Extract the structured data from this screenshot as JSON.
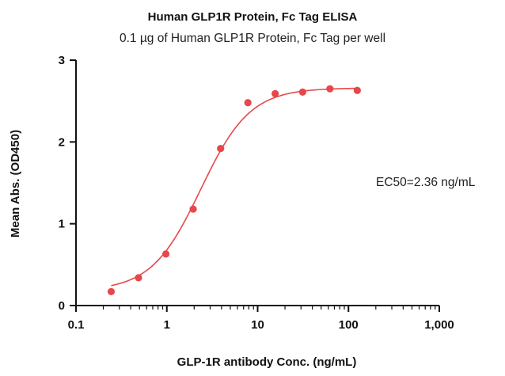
{
  "chart_data": {
    "type": "scatter",
    "title": "Human GLP1R Protein, Fc Tag ELISA",
    "subtitle": "0.1 µg of Human GLP1R Protein, Fc Tag per well",
    "xlabel": "GLP-1R antibody Conc. (ng/mL)",
    "ylabel": "Mean Abs. (OD450)",
    "xscale": "log",
    "xlim": [
      0.1,
      1000
    ],
    "ylim": [
      0,
      3
    ],
    "x_ticks": [
      0.1,
      1,
      10,
      100,
      1000
    ],
    "x_tick_labels": [
      "0.1",
      "1",
      "10",
      "100",
      "1,000"
    ],
    "y_ticks": [
      0,
      1,
      2,
      3
    ],
    "y_tick_labels": [
      "0",
      "1",
      "2",
      "3"
    ],
    "grid": false,
    "legend": null,
    "series": [
      {
        "name": "Human GLP1R Protein, Fc Tag",
        "color": "#e8474a",
        "x": [
          0.244,
          0.488,
          0.977,
          1.95,
          3.91,
          7.81,
          15.6,
          31.3,
          62.5,
          125
        ],
        "y": [
          0.17,
          0.34,
          0.63,
          1.18,
          1.92,
          2.48,
          2.59,
          2.61,
          2.65,
          2.63
        ]
      }
    ],
    "fit": {
      "model": "4PL",
      "bottom": 0.18,
      "top": 2.66,
      "ec50": 2.36,
      "hill": 1.6,
      "x_range": [
        0.244,
        125
      ]
    },
    "annotations": [
      {
        "text": "EC50=2.36 ng/mL",
        "placement": "right-middle"
      }
    ]
  }
}
